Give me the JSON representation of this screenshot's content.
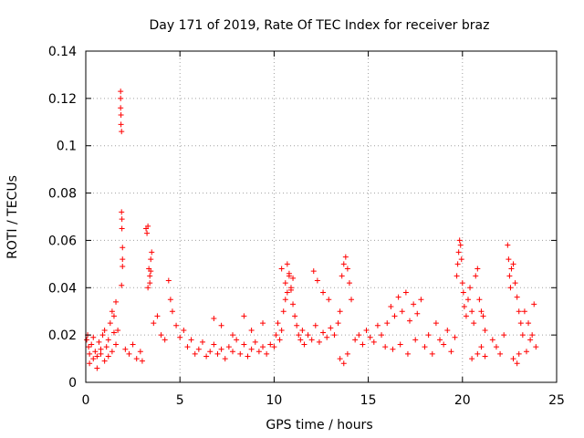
{
  "chart_data": {
    "type": "scatter",
    "title": "Day 171 of 2019, Rate Of TEC Index for receiver braz",
    "xlabel": "GPS time / hours",
    "ylabel": "ROTI / TECUs",
    "xlim": [
      0,
      25
    ],
    "ylim": [
      0,
      0.14
    ],
    "x_ticks": [
      0,
      5,
      10,
      15,
      20,
      25
    ],
    "x_tick_labels": [
      "0",
      "5",
      "10",
      "15",
      "20",
      "25"
    ],
    "y_ticks": [
      0,
      0.02,
      0.04,
      0.06,
      0.08,
      0.1,
      0.12,
      0.14
    ],
    "y_tick_labels": [
      "0",
      "0.02",
      "0.04",
      "0.06",
      "0.08",
      "0.1",
      "0.12",
      "0.14"
    ],
    "grid": true,
    "marker": "+",
    "color": "#ff0000",
    "series": [
      {
        "name": "ROTI",
        "x": [
          0.05,
          0.1,
          0.15,
          0.2,
          0.3,
          0.4,
          0.5,
          0.6,
          0.7,
          0.8,
          0.9,
          1.0,
          1.1,
          1.2,
          1.3,
          1.4,
          1.5,
          1.6,
          1.7,
          0.2,
          0.4,
          0.6,
          0.8,
          1.0,
          1.2,
          1.4,
          1.5,
          1.6,
          1.85,
          1.85,
          1.85,
          1.87,
          1.87,
          1.9,
          1.9,
          1.92,
          1.92,
          1.95,
          1.95,
          1.95,
          1.9,
          2.1,
          2.3,
          2.5,
          2.7,
          2.9,
          3.0,
          3.2,
          3.25,
          3.3,
          3.35,
          3.4,
          3.45,
          3.5,
          3.3,
          3.4,
          3.45,
          3.6,
          3.8,
          4.0,
          4.2,
          4.4,
          4.5,
          4.6,
          4.8,
          5.0,
          5.2,
          5.4,
          5.6,
          5.8,
          6.0,
          6.2,
          6.4,
          6.6,
          6.8,
          7.0,
          7.2,
          7.4,
          7.6,
          7.8,
          8.0,
          8.2,
          8.4,
          8.6,
          8.8,
          9.0,
          9.2,
          9.4,
          9.6,
          9.8,
          6.8,
          7.2,
          7.8,
          8.4,
          8.8,
          9.4,
          10.0,
          10.1,
          10.2,
          10.3,
          10.4,
          10.5,
          10.6,
          10.7,
          10.8,
          10.9,
          11.0,
          11.1,
          11.2,
          11.3,
          11.4,
          11.5,
          10.4,
          10.6,
          10.7,
          10.8,
          10.9,
          11.0,
          11.6,
          11.8,
          12.0,
          12.2,
          12.4,
          12.6,
          12.8,
          13.0,
          12.1,
          12.3,
          12.6,
          12.9,
          13.2,
          13.4,
          13.5,
          13.6,
          13.7,
          13.8,
          13.9,
          14.0,
          14.1,
          13.5,
          13.7,
          13.9,
          14.3,
          14.5,
          14.7,
          14.9,
          15.1,
          15.3,
          15.5,
          15.7,
          15.9,
          16.0,
          16.2,
          16.4,
          16.6,
          16.8,
          17.0,
          17.2,
          17.4,
          17.6,
          17.8,
          16.3,
          16.7,
          17.1,
          17.5,
          18.0,
          18.2,
          18.4,
          18.6,
          18.8,
          19.0,
          19.2,
          19.4,
          19.6,
          19.7,
          19.75,
          19.8,
          19.85,
          19.9,
          19.95,
          20.0,
          20.05,
          20.1,
          20.2,
          20.3,
          20.4,
          20.5,
          20.6,
          20.7,
          20.8,
          20.9,
          21.0,
          21.1,
          21.2,
          20.5,
          20.8,
          21.0,
          21.2,
          21.6,
          21.8,
          22.0,
          22.2,
          22.4,
          22.45,
          22.5,
          22.55,
          22.6,
          22.7,
          22.8,
          22.9,
          23.0,
          23.1,
          23.2,
          22.7,
          22.9,
          23.0,
          23.3,
          23.5,
          23.7,
          23.9,
          23.8,
          23.6,
          23.4
        ],
        "y": [
          0.018,
          0.02,
          0.015,
          0.012,
          0.016,
          0.019,
          0.013,
          0.011,
          0.017,
          0.014,
          0.02,
          0.022,
          0.015,
          0.018,
          0.025,
          0.03,
          0.028,
          0.034,
          0.022,
          0.008,
          0.01,
          0.006,
          0.012,
          0.009,
          0.011,
          0.013,
          0.021,
          0.016,
          0.123,
          0.12,
          0.116,
          0.113,
          0.109,
          0.106,
          0.072,
          0.069,
          0.065,
          0.057,
          0.052,
          0.049,
          0.041,
          0.014,
          0.012,
          0.016,
          0.01,
          0.013,
          0.009,
          0.065,
          0.063,
          0.066,
          0.048,
          0.045,
          0.052,
          0.055,
          0.04,
          0.042,
          0.047,
          0.025,
          0.028,
          0.02,
          0.018,
          0.043,
          0.035,
          0.03,
          0.024,
          0.019,
          0.022,
          0.015,
          0.018,
          0.012,
          0.014,
          0.017,
          0.011,
          0.013,
          0.016,
          0.012,
          0.014,
          0.01,
          0.015,
          0.013,
          0.018,
          0.012,
          0.016,
          0.011,
          0.014,
          0.017,
          0.013,
          0.015,
          0.012,
          0.016,
          0.027,
          0.024,
          0.02,
          0.028,
          0.022,
          0.025,
          0.015,
          0.02,
          0.025,
          0.018,
          0.022,
          0.03,
          0.035,
          0.038,
          0.045,
          0.04,
          0.033,
          0.028,
          0.024,
          0.02,
          0.018,
          0.022,
          0.048,
          0.042,
          0.05,
          0.046,
          0.039,
          0.044,
          0.016,
          0.02,
          0.018,
          0.024,
          0.017,
          0.021,
          0.019,
          0.023,
          0.047,
          0.043,
          0.038,
          0.035,
          0.02,
          0.025,
          0.03,
          0.045,
          0.05,
          0.053,
          0.048,
          0.042,
          0.035,
          0.01,
          0.008,
          0.012,
          0.018,
          0.02,
          0.016,
          0.022,
          0.019,
          0.017,
          0.024,
          0.02,
          0.015,
          0.025,
          0.032,
          0.028,
          0.036,
          0.03,
          0.038,
          0.026,
          0.033,
          0.029,
          0.035,
          0.014,
          0.016,
          0.012,
          0.018,
          0.015,
          0.02,
          0.012,
          0.025,
          0.018,
          0.016,
          0.022,
          0.013,
          0.019,
          0.045,
          0.05,
          0.055,
          0.06,
          0.058,
          0.052,
          0.042,
          0.038,
          0.032,
          0.028,
          0.035,
          0.04,
          0.03,
          0.025,
          0.045,
          0.048,
          0.035,
          0.03,
          0.028,
          0.022,
          0.01,
          0.012,
          0.015,
          0.011,
          0.018,
          0.015,
          0.012,
          0.02,
          0.058,
          0.052,
          0.045,
          0.04,
          0.048,
          0.05,
          0.042,
          0.036,
          0.03,
          0.025,
          0.02,
          0.01,
          0.008,
          0.012,
          0.03,
          0.025,
          0.02,
          0.015,
          0.033,
          0.018,
          0.013
        ]
      }
    ]
  }
}
